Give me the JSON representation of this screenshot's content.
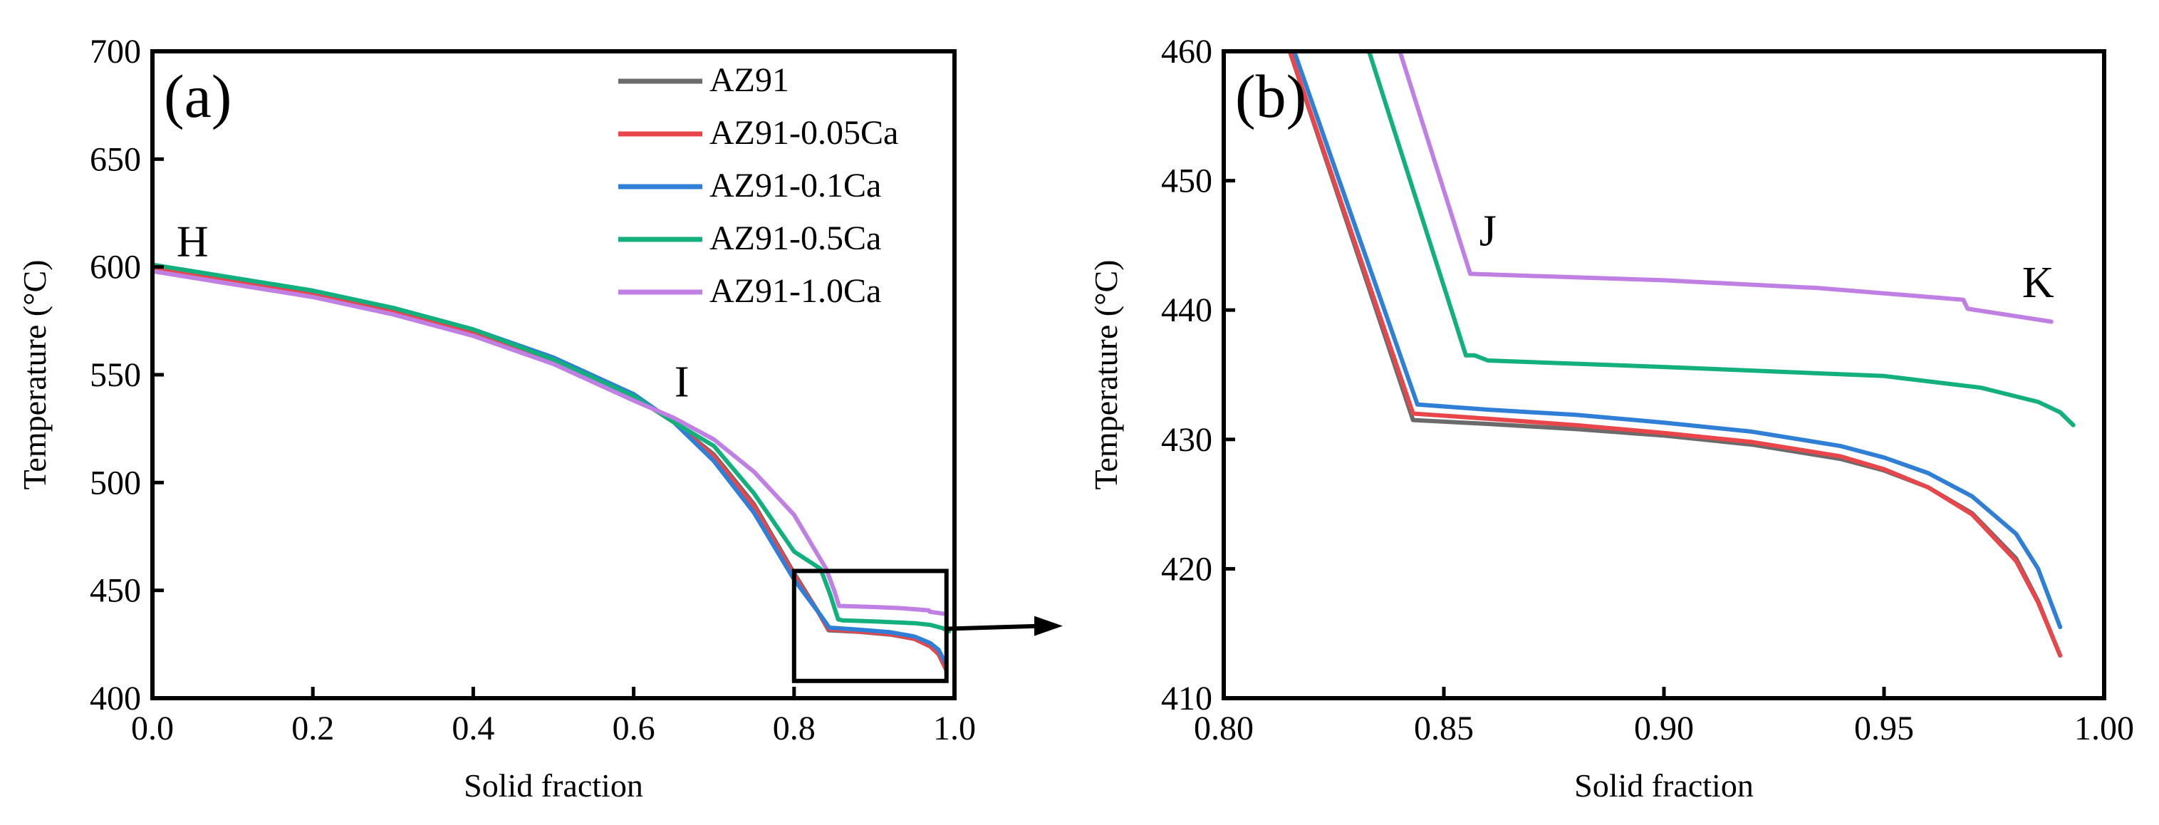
{
  "colors": {
    "AZ91": "#6b6b6b",
    "AZ91-0.05Ca": "#e8464a",
    "AZ91-0.1Ca": "#2f7fd6",
    "AZ91-0.5Ca": "#13b07e",
    "AZ91-1.0Ca": "#c07fe3"
  },
  "arrow_note": "zoom-arrow",
  "chart_data": [
    {
      "panel": "(a)",
      "type": "line",
      "xlabel": "Solid fraction",
      "ylabel": "Temperature (°C)",
      "xlim": [
        0.0,
        1.0
      ],
      "ylim": [
        400,
        700
      ],
      "xticks": [
        "0.0",
        "0.2",
        "0.4",
        "0.6",
        "0.8",
        "1.0"
      ],
      "yticks": [
        "400",
        "450",
        "500",
        "550",
        "600",
        "650",
        "700"
      ],
      "legend_position": "top-right",
      "annotations": [
        {
          "text": "H",
          "x": 0.05,
          "y": 605
        },
        {
          "text": "I",
          "x": 0.66,
          "y": 540
        }
      ],
      "inset_box": {
        "x": [
          0.8,
          0.99
        ],
        "y": [
          408,
          459
        ]
      },
      "series": [
        {
          "name": "AZ91",
          "x": [
            0.0,
            0.0,
            0.05,
            0.1,
            0.2,
            0.3,
            0.4,
            0.5,
            0.6,
            0.65,
            0.7,
            0.75,
            0.8,
            0.83,
            0.843,
            0.88,
            0.92,
            0.95,
            0.97,
            0.98,
            0.99
          ],
          "y": [
            620,
            600,
            597,
            594,
            588,
            580,
            570,
            557,
            540,
            528,
            513,
            490,
            458,
            440,
            431.5,
            430.8,
            429.5,
            427.5,
            424,
            420.5,
            413
          ]
        },
        {
          "name": "AZ91-0.05Ca",
          "x": [
            0.0,
            0.0,
            0.05,
            0.1,
            0.2,
            0.3,
            0.4,
            0.5,
            0.6,
            0.65,
            0.7,
            0.75,
            0.8,
            0.83,
            0.843,
            0.88,
            0.92,
            0.95,
            0.97,
            0.98,
            0.99
          ],
          "y": [
            620,
            600,
            597,
            594,
            588,
            580,
            570,
            557,
            540,
            528,
            512,
            489,
            457,
            440,
            432,
            431,
            429.7,
            427.6,
            424,
            420.5,
            413
          ]
        },
        {
          "name": "AZ91-0.1Ca",
          "x": [
            0.0,
            0.0,
            0.05,
            0.1,
            0.2,
            0.3,
            0.4,
            0.5,
            0.6,
            0.65,
            0.7,
            0.75,
            0.8,
            0.83,
            0.844,
            0.88,
            0.92,
            0.95,
            0.97,
            0.98,
            0.99
          ],
          "y": [
            620,
            601,
            598,
            595,
            589,
            581,
            571,
            558,
            541,
            528,
            510,
            486,
            455,
            440,
            432.7,
            431.8,
            430.6,
            428.6,
            425.5,
            422.5,
            415.5
          ]
        },
        {
          "name": "AZ91-0.5Ca",
          "x": [
            0.0,
            0.0,
            0.05,
            0.1,
            0.2,
            0.3,
            0.4,
            0.5,
            0.6,
            0.65,
            0.7,
            0.75,
            0.8,
            0.833,
            0.845,
            0.855,
            0.86,
            0.9,
            0.95,
            0.97,
            0.985,
            0.993
          ],
          "y": [
            620,
            601,
            598,
            595,
            589,
            581,
            571,
            557,
            540,
            528,
            517,
            495,
            468,
            460,
            448,
            436.5,
            436.1,
            435.6,
            434.8,
            434,
            432.5,
            431
          ]
        },
        {
          "name": "AZ91-1.0Ca",
          "x": [
            0.0,
            0.0,
            0.05,
            0.1,
            0.2,
            0.3,
            0.4,
            0.5,
            0.6,
            0.65,
            0.7,
            0.75,
            0.8,
            0.84,
            0.85,
            0.856,
            0.9,
            0.935,
            0.968,
            0.969,
            0.988
          ],
          "y": [
            680,
            598,
            595,
            592,
            586,
            578,
            568,
            555,
            538,
            530,
            520,
            505,
            485,
            460,
            450,
            442.8,
            442.3,
            441.7,
            440.7,
            440.1,
            439.1
          ]
        }
      ]
    },
    {
      "panel": "(b)",
      "type": "line",
      "xlabel": "Solid fraction",
      "ylabel": "Temperature (°C)",
      "xlim": [
        0.8,
        1.0
      ],
      "ylim": [
        410,
        460
      ],
      "xticks": [
        "0.80",
        "0.85",
        "0.90",
        "0.95",
        "1.00"
      ],
      "yticks": [
        "410",
        "420",
        "430",
        "440",
        "450",
        "460"
      ],
      "annotations": [
        {
          "text": "J",
          "x": 0.86,
          "y": 445
        },
        {
          "text": "K",
          "x": 0.985,
          "y": 441
        }
      ],
      "series": [
        {
          "name": "AZ91",
          "x": [
            0.815,
            0.843,
            0.86,
            0.88,
            0.9,
            0.92,
            0.94,
            0.95,
            0.96,
            0.97,
            0.98,
            0.985,
            0.99
          ],
          "y": [
            460,
            431.5,
            431.2,
            430.8,
            430.3,
            429.6,
            428.5,
            427.6,
            426.3,
            424.3,
            420.8,
            417.5,
            413.3
          ]
        },
        {
          "name": "AZ91-0.05Ca",
          "x": [
            0.815,
            0.843,
            0.86,
            0.88,
            0.9,
            0.92,
            0.94,
            0.95,
            0.96,
            0.97,
            0.98,
            0.985,
            0.99
          ],
          "y": [
            460,
            432,
            431.6,
            431.1,
            430.5,
            429.8,
            428.7,
            427.7,
            426.3,
            424.2,
            420.6,
            417.4,
            413.3
          ]
        },
        {
          "name": "AZ91-0.1Ca",
          "x": [
            0.816,
            0.844,
            0.86,
            0.88,
            0.9,
            0.92,
            0.94,
            0.95,
            0.96,
            0.97,
            0.98,
            0.985,
            0.99
          ],
          "y": [
            460,
            432.7,
            432.3,
            431.9,
            431.3,
            430.6,
            429.5,
            428.6,
            427.4,
            425.6,
            422.7,
            420,
            415.5
          ]
        },
        {
          "name": "AZ91-0.5Ca",
          "x": [
            0.833,
            0.855,
            0.857,
            0.86,
            0.9,
            0.95,
            0.972,
            0.985,
            0.99,
            0.993
          ],
          "y": [
            460,
            436.5,
            436.5,
            436.1,
            435.6,
            434.9,
            434.0,
            432.9,
            432.1,
            431.1
          ]
        },
        {
          "name": "AZ91-1.0Ca",
          "x": [
            0.84,
            0.856,
            0.9,
            0.935,
            0.968,
            0.969,
            0.988
          ],
          "y": [
            460,
            442.8,
            442.3,
            441.7,
            440.8,
            440.1,
            439.1
          ]
        }
      ]
    }
  ]
}
